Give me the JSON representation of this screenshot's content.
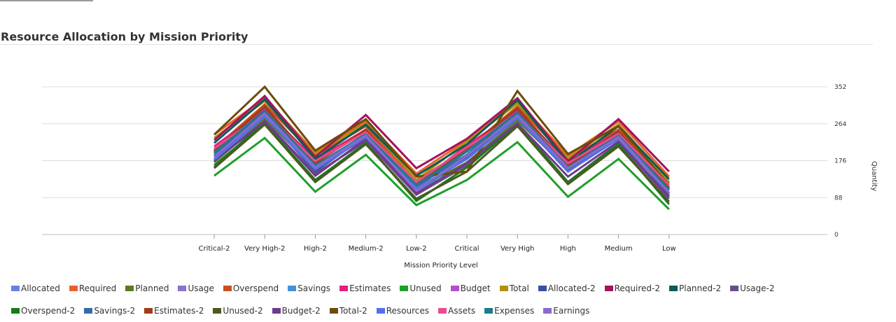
{
  "chart_data": {
    "type": "line",
    "title": "Resource Allocation by Mission Priority",
    "xlabel": "Mission Priority Level",
    "ylabel": "Quantity",
    "categories": [
      "Critical-2",
      "Very High-2",
      "High-2",
      "Medium-2",
      "Low-2",
      "Critical",
      "Very High",
      "High",
      "Medium",
      "Low"
    ],
    "y_ticks": [
      "0",
      "88",
      "176",
      "264",
      "352"
    ],
    "ylim": [
      0,
      352
    ],
    "y_axis_position": "right",
    "grid": true,
    "legend_position": "bottom",
    "series": [
      {
        "name": "Allocated",
        "color": "#6b7fe3",
        "values": [
          180,
          280,
          165,
          235,
          100,
          185,
          280,
          160,
          235,
          95
        ]
      },
      {
        "name": "Required",
        "color": "#e8622c",
        "values": [
          238,
          325,
          195,
          270,
          145,
          225,
          318,
          188,
          270,
          138
        ]
      },
      {
        "name": "Planned",
        "color": "#5c7a1e",
        "values": [
          172,
          275,
          158,
          230,
          108,
          172,
          272,
          155,
          228,
          100
        ]
      },
      {
        "name": "Usage",
        "color": "#8c72c8",
        "values": [
          198,
          300,
          172,
          245,
          118,
          200,
          295,
          168,
          240,
          110
        ]
      },
      {
        "name": "Overspend",
        "color": "#c9501c",
        "values": [
          205,
          310,
          188,
          258,
          128,
          205,
          305,
          180,
          250,
          122
        ]
      },
      {
        "name": "Savings",
        "color": "#3f91d9",
        "values": [
          192,
          300,
          160,
          240,
          95,
          190,
          298,
          158,
          240,
          92
        ]
      },
      {
        "name": "Estimates",
        "color": "#e0227d",
        "values": [
          210,
          298,
          178,
          250,
          120,
          212,
          295,
          172,
          246,
          112
        ]
      },
      {
        "name": "Unused",
        "color": "#1f9e2a",
        "values": [
          140,
          230,
          102,
          190,
          70,
          130,
          220,
          90,
          180,
          60
        ]
      },
      {
        "name": "Budget",
        "color": "#b04fd1",
        "values": [
          195,
          305,
          170,
          248,
          112,
          198,
          300,
          165,
          245,
          105
        ]
      },
      {
        "name": "Total",
        "color": "#b0900f",
        "values": [
          230,
          318,
          192,
          265,
          130,
          222,
          312,
          182,
          262,
          125
        ]
      },
      {
        "name": "Allocated-2",
        "color": "#3a4ea3",
        "values": [
          185,
          285,
          150,
          235,
          105,
          185,
          280,
          150,
          232,
          98
        ]
      },
      {
        "name": "Required-2",
        "color": "#a3135e",
        "values": [
          225,
          330,
          185,
          285,
          158,
          228,
          325,
          175,
          275,
          150
        ]
      },
      {
        "name": "Planned-2",
        "color": "#0b5c57",
        "values": [
          218,
          322,
          180,
          262,
          140,
          215,
          320,
          170,
          258,
          132
        ]
      },
      {
        "name": "Usage-2",
        "color": "#6a4c88",
        "values": [
          160,
          270,
          145,
          222,
          95,
          165,
          265,
          125,
          218,
          85
        ]
      },
      {
        "name": "Overspend-2",
        "color": "#1a7a1a",
        "values": [
          165,
          265,
          130,
          218,
          80,
          160,
          262,
          125,
          215,
          72
        ]
      },
      {
        "name": "Savings-2",
        "color": "#2f6fa8",
        "values": [
          188,
          290,
          160,
          240,
          115,
          190,
          288,
          160,
          238,
          110
        ]
      },
      {
        "name": "Estimates-2",
        "color": "#a33a1a",
        "values": [
          200,
          305,
          170,
          250,
          120,
          205,
          300,
          165,
          245,
          112
        ]
      },
      {
        "name": "Unused-2",
        "color": "#4a5a20",
        "values": [
          158,
          262,
          125,
          215,
          85,
          150,
          258,
          120,
          210,
          78
        ]
      },
      {
        "name": "Budget-2",
        "color": "#6e3a8e",
        "values": [
          175,
          270,
          140,
          228,
          98,
          170,
          265,
          138,
          222,
          90
        ]
      },
      {
        "name": "Total-2",
        "color": "#6b4d0a",
        "values": [
          238,
          352,
          200,
          275,
          138,
          150,
          342,
          192,
          258,
          118
        ]
      },
      {
        "name": "Resources",
        "color": "#5470e8",
        "values": [
          178,
          282,
          155,
          232,
          110,
          180,
          278,
          150,
          228,
          100
        ]
      },
      {
        "name": "Assets",
        "color": "#e84c8f",
        "values": [
          205,
          290,
          175,
          244,
          125,
          208,
          286,
          170,
          240,
          118
        ]
      },
      {
        "name": "Expenses",
        "color": "#1f7a8a",
        "values": [
          195,
          295,
          165,
          238,
          118,
          198,
          290,
          160,
          235,
          108
        ]
      },
      {
        "name": "Earnings",
        "color": "#8a6ad0",
        "values": [
          185,
          288,
          160,
          236,
          105,
          188,
          284,
          158,
          232,
          100
        ]
      }
    ]
  }
}
